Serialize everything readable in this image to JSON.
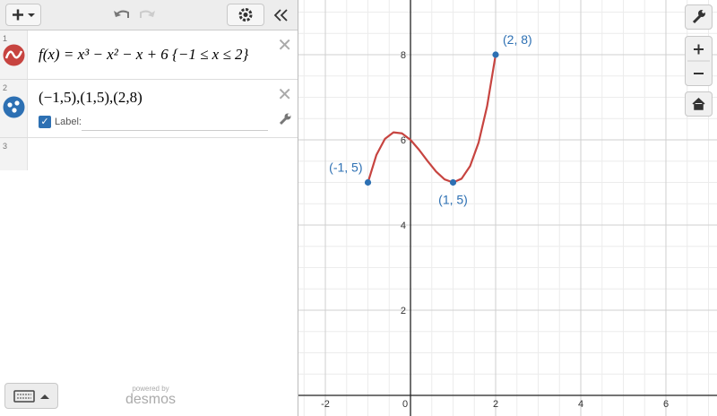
{
  "expressions": [
    {
      "index": "1",
      "text": "f(x) = x³ − x² − x + 6 {−1 ≤ x ≤ 2}"
    },
    {
      "index": "2",
      "text": "(−1,5),(1,5),(2,8)",
      "label_option": "Label:"
    },
    {
      "index": "3"
    }
  ],
  "branding": {
    "line1": "powered by",
    "line2": "desmos"
  },
  "chart_data": {
    "type": "line",
    "xlim": [
      -2.632,
      7.2
    ],
    "ylim": [
      -0.484,
      9.284
    ],
    "xticks": [
      -2,
      0,
      2,
      4,
      6
    ],
    "yticks": [
      2,
      4,
      6,
      8
    ],
    "grid": true,
    "series": [
      {
        "type": "line",
        "color": "#c74440",
        "x": [
          -1,
          -0.8,
          -0.6,
          -0.4,
          -0.2,
          0,
          0.2,
          0.4,
          0.6,
          0.8,
          1,
          1.2,
          1.4,
          1.6,
          1.8,
          2
        ],
        "values": [
          5,
          5.648,
          6.024,
          6.176,
          6.152,
          6,
          5.768,
          5.504,
          5.256,
          5.072,
          5,
          5.088,
          5.384,
          5.936,
          6.792,
          8
        ]
      },
      {
        "type": "scatter",
        "color": "#2d70b3",
        "x": [
          -1,
          1,
          2
        ],
        "values": [
          5,
          5,
          8
        ],
        "labels": [
          "(-1, 5)",
          "(1, 5)",
          "(2, 8)"
        ]
      }
    ]
  }
}
